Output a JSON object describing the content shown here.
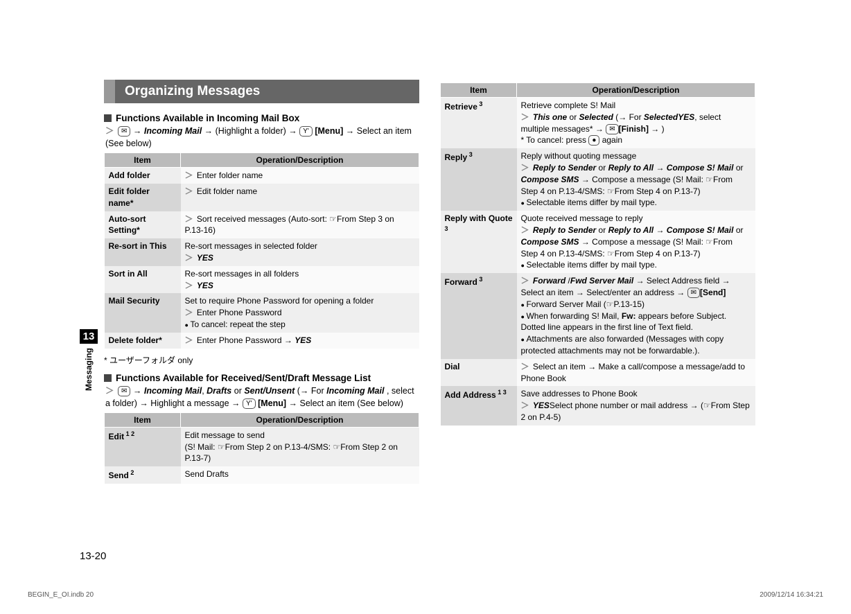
{
  "heading": "Organizing Messages",
  "side": {
    "chapter": "13",
    "label": "Messaging"
  },
  "pageNumber": "13-20",
  "footer": {
    "left": "BEGIN_E_OI.indb   20",
    "right": "2009/12/14   16:34:21"
  },
  "left": {
    "sub1": "Functions Available in Incoming Mail Box",
    "nav1_prefix": "＞",
    "nav1_a": "Incoming Mail",
    "nav1_b": " → (Highlight a folder) → ",
    "nav1_menu": "[Menu]",
    "nav1_c": " → Select an item (See below)",
    "th_item": "Item",
    "th_op": "Operation/Description",
    "rows1": [
      {
        "item": "Add folder",
        "desc_pre": "＞",
        "desc": "Enter folder name"
      },
      {
        "item": "Edit folder name*",
        "desc_pre": "＞",
        "desc": "Edit folder name"
      },
      {
        "item": "Auto-sort Setting*",
        "desc_pre": "＞",
        "desc": "Sort received messages (Auto-sort: ☞From Step 3 on P.13-16)"
      },
      {
        "item": "Re-sort in This",
        "desc_line1": "Re-sort messages in selected folder",
        "desc_pre": "＞",
        "yes": "YES"
      },
      {
        "item": "Sort in All",
        "desc_line1": "Re-sort messages in all folders",
        "desc_pre": "＞",
        "yes": "YES"
      },
      {
        "item": "Mail Security",
        "desc_line1": "Set to require Phone Password for opening a folder",
        "desc_pre": "＞",
        "desc": "Enter Phone Password",
        "bullet": "To cancel: repeat the step"
      },
      {
        "item": "Delete folder*",
        "desc_pre": "＞",
        "desc": "Enter Phone Password → ",
        "yes": "YES"
      }
    ],
    "note1": "* ユーザーフォルダ only",
    "sub2": "Functions Available for Received/Sent/Draft Message List",
    "nav2_a": "Incoming Mail",
    "nav2_b": "Drafts",
    "nav2_c": "Sent/Unsent",
    "nav2_d": " (→ For ",
    "nav2_e": "Incoming Mail",
    "nav2_f": ", select a folder) → Highlight a message → ",
    "nav2_menu": "[Menu]",
    "nav2_g": " → Select an item (See below)",
    "rows2": [
      {
        "item": "Edit",
        "sup": " 1  2",
        "line1": "Edit message to send",
        "line2": "(S! Mail: ☞From Step 2 on P.13-4/SMS: ☞From Step 2 on P.13-7)"
      },
      {
        "item": "Send",
        "sup": " 2",
        "line1": "Send Drafts"
      }
    ]
  },
  "right": {
    "th_item": "Item",
    "th_op": "Operation/Description",
    "rows": [
      {
        "item": "Retrieve",
        "sup": " 3",
        "line1": "Retrieve complete S! Mail",
        "chev": "＞",
        "bi1": "This one",
        "mid1": " or ",
        "bi2": "Selected",
        "rest1": " (→ For ",
        "bi3": "Selected",
        "rest2": ", select multiple messages* → ",
        "keylabel": "[Finish]",
        "rest3": " → ",
        "bi4": "YES",
        "rest4": ")",
        "note": "* To cancel: press ",
        "noteEnd": " again"
      },
      {
        "item": "Reply",
        "sup": " 3",
        "line1": "Reply without quoting message",
        "chev": "＞",
        "bi1": "Reply to Sender",
        "mid1": " or ",
        "bi2": "Reply to All",
        "rest1": " → ",
        "bi3": "Compose S! Mail",
        "mid2": " or ",
        "bi4": "Compose SMS",
        "rest2": " → Compose a message (S! Mail: ☞From Step 4 on P.13-4/SMS: ☞From Step 4 on P.13-7)",
        "bullet": "Selectable items differ by mail type."
      },
      {
        "item": "Reply with Quote",
        "sup": " 3",
        "line1": "Quote received message to reply",
        "chev": "＞",
        "bi1": "Reply to Sender",
        "mid1": " or ",
        "bi2": "Reply to All",
        "rest1": " → ",
        "bi3": "Compose S! Mail",
        "mid2": " or ",
        "bi4": "Compose SMS",
        "rest2": " → Compose a message (S! Mail: ☞From Step 4 on P.13-4/SMS: ☞From Step 4 on P.13-7)",
        "bullet": "Selectable items differ by mail type."
      },
      {
        "item": "Forward",
        "sup": " 3",
        "chev": "＞",
        "bi1": "Forward",
        "mid1": " /",
        "bi2": "Fwd Server Mail",
        "rest1": " → Select Address field → Select an item → Select/enter an address → ",
        "keylabel": "[Send]",
        "bullets": [
          "Forward Server Mail (☞P.13-15)",
          "When forwarding S! Mail, <b>Fw:</b> appears before Subject. Dotted line appears in the first line of Text field.",
          "Attachments are also forwarded (Messages with copy protected attachments may not be forwardable.)."
        ]
      },
      {
        "item": "Dial",
        "chev": "＞",
        "rest1": "Select an item → Make a call/compose a message/add to Phone Book"
      },
      {
        "item": "Add Address",
        "sup": " 1  3",
        "line1": "Save addresses to Phone Book",
        "chev": "＞",
        "rest1": "Select phone number or mail address → ",
        "bi1": "YES",
        "rest2": " (☞From Step 2 on P.4-5)"
      }
    ]
  }
}
